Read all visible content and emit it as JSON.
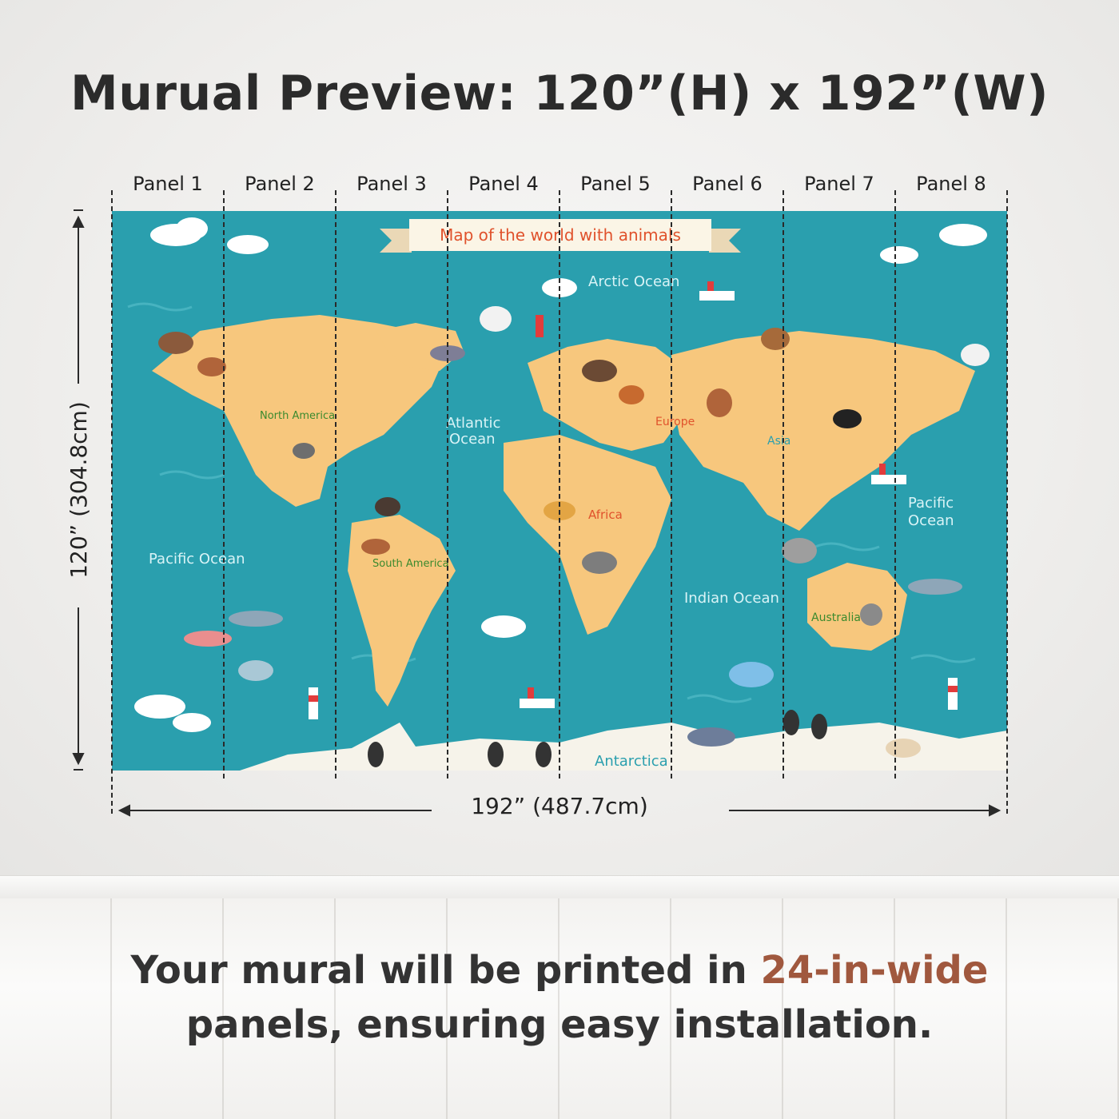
{
  "title": "Murual Preview: 120”(H) x 192”(W)",
  "panels": [
    "Panel 1",
    "Panel 2",
    "Panel 3",
    "Panel 4",
    "Panel 5",
    "Panel 6",
    "Panel 7",
    "Panel 8"
  ],
  "dimensions": {
    "height_label": "120” (304.8cm)",
    "width_label": "192” (487.7cm)"
  },
  "map": {
    "banner": "Map of the world with animals",
    "oceans": {
      "arctic": "Arctic Ocean",
      "atlantic_1": "Atlantic",
      "atlantic_2": "Ocean",
      "pacific_west": "Pacific Ocean",
      "pacific_east_1": "Pacific",
      "pacific_east_2": "Ocean",
      "indian": "Indian Ocean"
    },
    "continents": {
      "north_america": "North America",
      "south_america": "South America",
      "europe": "Europe",
      "africa": "Africa",
      "asia": "Asia",
      "australia": "Australia",
      "antarctica": "Antarctica"
    }
  },
  "caption": {
    "line1_prefix": "Your mural will be printed in ",
    "line1_accent": "24-in-wide",
    "line2": "panels, ensuring easy installation."
  },
  "colors": {
    "ocean": "#2a9fae",
    "land": "#f7c77d",
    "ice": "#f6f3ea",
    "banner_text": "#e0522c",
    "ocean_label": "#d8f3f6",
    "accent": "#a0583e"
  }
}
